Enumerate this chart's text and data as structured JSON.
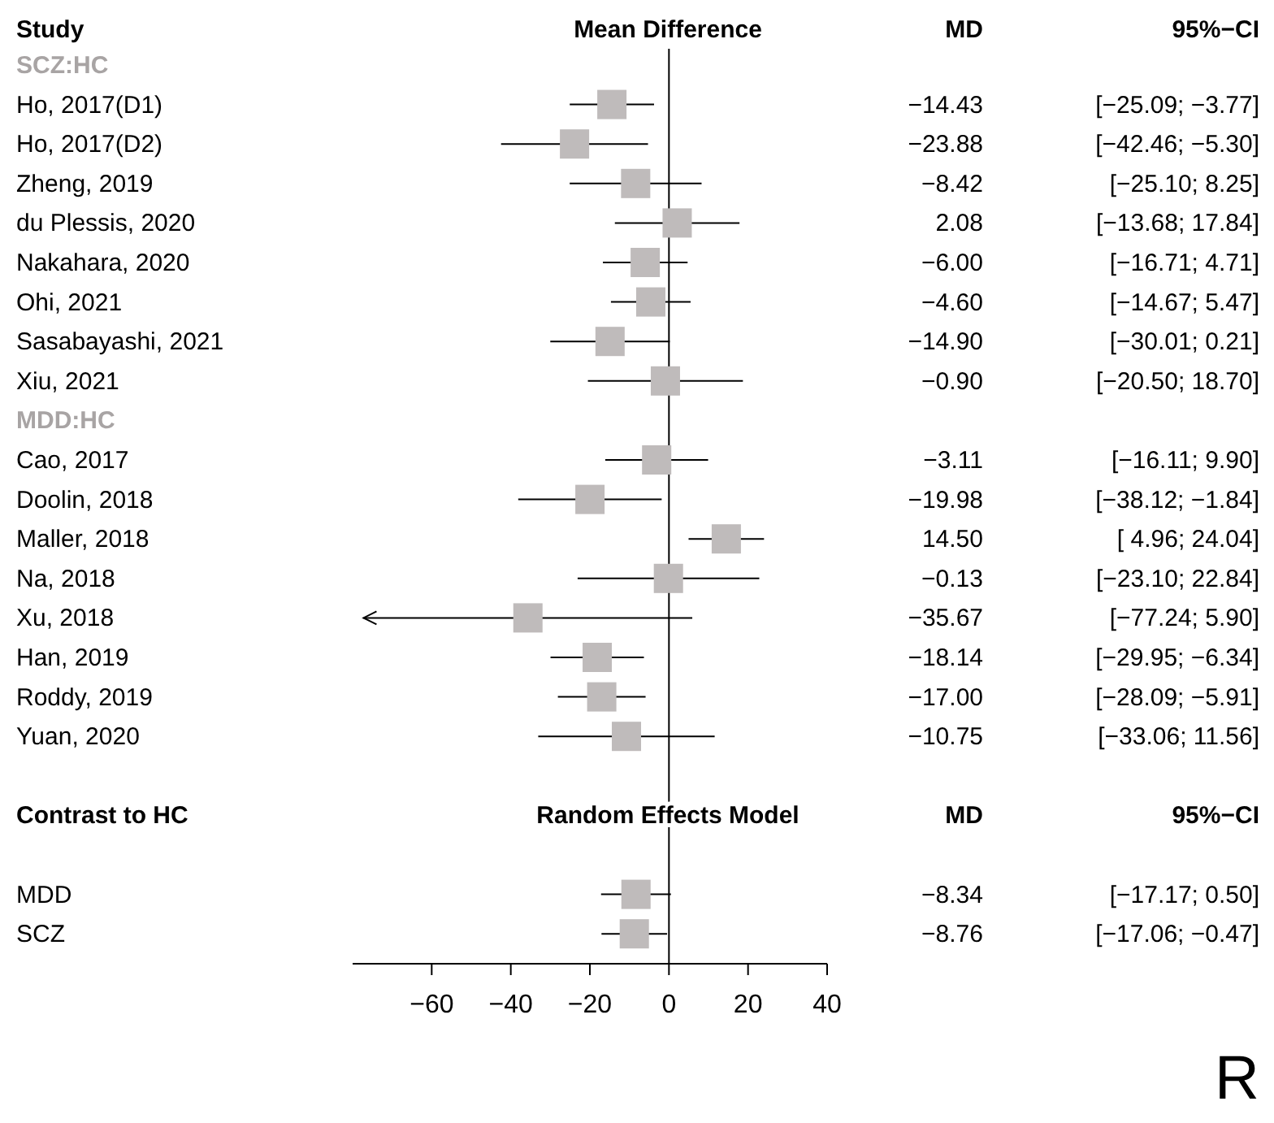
{
  "chart_data": {
    "type": "scatter",
    "orientation": "horizontal",
    "marker": "square",
    "categories": [
      "SCZ:HC",
      "Ho, 2017(D1)",
      "Ho, 2017(D2)",
      "Zheng, 2019",
      "du Plessis, 2020",
      "Nakahara, 2020",
      "Ohi, 2021",
      "Sasabayashi, 2021",
      "Xiu, 2021",
      "MDD:HC",
      "Cao, 2017",
      "Doolin, 2018",
      "Maller, 2018",
      "Na, 2018",
      "Xu, 2018",
      "Han, 2019",
      "Roddy, 2019",
      "Yuan, 2020",
      null,
      null,
      null,
      "MDD",
      "SCZ"
    ],
    "series": [
      {
        "color": "#bfbbbb",
        "values": [
          null,
          -14.43,
          -23.88,
          -8.42,
          2.08,
          -6.0,
          -4.6,
          -14.9,
          -0.9,
          null,
          -3.11,
          -19.98,
          14.5,
          -0.13,
          -35.67,
          -18.14,
          -17.0,
          -10.75,
          null,
          null,
          null,
          -8.34,
          -8.76
        ],
        "errors": [
          null,
          [
            -25.09,
            -3.77
          ],
          [
            -42.46,
            -5.3
          ],
          [
            -25.1,
            8.25
          ],
          [
            -13.68,
            17.84
          ],
          [
            -16.71,
            4.71
          ],
          [
            -14.67,
            5.47
          ],
          [
            -30.01,
            0.21
          ],
          [
            -20.5,
            18.7
          ],
          null,
          [
            -16.11,
            9.9
          ],
          [
            -38.12,
            -1.84
          ],
          [
            4.96,
            24.04
          ],
          [
            -23.1,
            22.84
          ],
          [
            -77.24,
            5.9
          ],
          [
            -29.95,
            -6.34
          ],
          [
            -28.09,
            -5.91
          ],
          [
            -33.06,
            11.56
          ],
          null,
          null,
          null,
          [
            -17.17,
            0.5
          ],
          [
            -17.06,
            -0.47
          ]
        ],
        "value_labels": [
          null,
          "−14.43 [−25.09; −3.77]",
          "−23.88 [−42.46; −5.30]",
          "−8.42 [−25.10; 8.25]",
          "2.08 [−13.68; 17.84]",
          "−6.00 [−16.71; 4.71]",
          "−4.60 [−14.67; 5.47]",
          "−14.90 [−30.01; 0.21]",
          "−0.90 [−20.50; 18.70]",
          null,
          "−3.11 [−16.11; 9.90]",
          "−19.98 [−38.12; −1.84]",
          "14.50 [ 4.96; 24.04]",
          "−0.13 [−23.10; 22.84]",
          "−35.67 [−77.24; 5.90]",
          "−18.14 [−29.95; −6.34]",
          "−17.00 [−28.09; −5.91]",
          "−10.75 [−33.06; 11.56]",
          null,
          null,
          null,
          "−8.34 [−17.17; 0.50]",
          "−8.76 [−17.06; −0.47]"
        ]
      }
    ],
    "xlim": [
      -80,
      40
    ],
    "xticks": [
      -60,
      -40,
      -20,
      0,
      20,
      40
    ],
    "ref_lines": [
      {
        "axis": "x",
        "value": 0,
        "color": "#000000"
      }
    ],
    "annotations": [
      "Study",
      "Mean Difference",
      "MD",
      "95%−CI",
      "Contrast to HC",
      "Random Effects Model",
      "MD",
      "95%−CI",
      "R"
    ]
  }
}
